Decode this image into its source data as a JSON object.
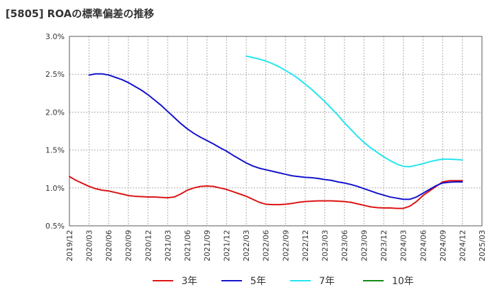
{
  "chart_data": {
    "type": "line",
    "title": "[5805]  ROAの標準偏差の推移",
    "xlabel": "",
    "ylabel": "",
    "ylim": [
      0.5,
      3.0
    ],
    "y_ticks": [
      "0.5%",
      "1.0%",
      "1.5%",
      "2.0%",
      "2.5%",
      "3.0%"
    ],
    "x_ticks": [
      "2019/12",
      "2020/03",
      "2020/06",
      "2020/09",
      "2020/12",
      "2021/03",
      "2021/06",
      "2021/09",
      "2021/12",
      "2022/03",
      "2022/06",
      "2022/09",
      "2022/12",
      "2023/03",
      "2023/06",
      "2023/09",
      "2023/12",
      "2024/03",
      "2024/06",
      "2024/09",
      "2024/12",
      "2025/03"
    ],
    "grid": true,
    "legend_position": "bottom",
    "series": [
      {
        "name": "3年",
        "color": "#dd1111",
        "points": [
          [
            "2019/12",
            1.15
          ],
          [
            "2020/01",
            1.1
          ],
          [
            "2020/02",
            1.06
          ],
          [
            "2020/03",
            1.02
          ],
          [
            "2020/04",
            0.99
          ],
          [
            "2020/05",
            0.97
          ],
          [
            "2020/06",
            0.96
          ],
          [
            "2020/07",
            0.94
          ],
          [
            "2020/08",
            0.92
          ],
          [
            "2020/09",
            0.9
          ],
          [
            "2020/10",
            0.89
          ],
          [
            "2020/11",
            0.885
          ],
          [
            "2020/12",
            0.88
          ],
          [
            "2021/01",
            0.88
          ],
          [
            "2021/02",
            0.875
          ],
          [
            "2021/03",
            0.87
          ],
          [
            "2021/04",
            0.88
          ],
          [
            "2021/05",
            0.92
          ],
          [
            "2021/06",
            0.97
          ],
          [
            "2021/07",
            1.0
          ],
          [
            "2021/08",
            1.02
          ],
          [
            "2021/09",
            1.025
          ],
          [
            "2021/10",
            1.02
          ],
          [
            "2021/11",
            1.0
          ],
          [
            "2021/12",
            0.98
          ],
          [
            "2022/01",
            0.95
          ],
          [
            "2022/02",
            0.92
          ],
          [
            "2022/03",
            0.89
          ],
          [
            "2022/04",
            0.85
          ],
          [
            "2022/05",
            0.81
          ],
          [
            "2022/06",
            0.785
          ],
          [
            "2022/07",
            0.78
          ],
          [
            "2022/08",
            0.78
          ],
          [
            "2022/09",
            0.785
          ],
          [
            "2022/10",
            0.795
          ],
          [
            "2022/11",
            0.81
          ],
          [
            "2022/12",
            0.82
          ],
          [
            "2023/01",
            0.825
          ],
          [
            "2023/02",
            0.83
          ],
          [
            "2023/03",
            0.83
          ],
          [
            "2023/04",
            0.83
          ],
          [
            "2023/05",
            0.825
          ],
          [
            "2023/06",
            0.82
          ],
          [
            "2023/07",
            0.81
          ],
          [
            "2023/08",
            0.79
          ],
          [
            "2023/09",
            0.77
          ],
          [
            "2023/10",
            0.75
          ],
          [
            "2023/11",
            0.74
          ],
          [
            "2023/12",
            0.735
          ],
          [
            "2024/01",
            0.735
          ],
          [
            "2024/02",
            0.73
          ],
          [
            "2024/03",
            0.73
          ],
          [
            "2024/04",
            0.76
          ],
          [
            "2024/05",
            0.82
          ],
          [
            "2024/06",
            0.9
          ],
          [
            "2024/07",
            0.96
          ],
          [
            "2024/08",
            1.02
          ],
          [
            "2024/09",
            1.08
          ],
          [
            "2024/10",
            1.095
          ],
          [
            "2024/11",
            1.095
          ],
          [
            "2024/12",
            1.095
          ]
        ]
      },
      {
        "name": "5年",
        "color": "#1111cc",
        "points": [
          [
            "2020/03",
            2.49
          ],
          [
            "2020/04",
            2.505
          ],
          [
            "2020/05",
            2.505
          ],
          [
            "2020/06",
            2.49
          ],
          [
            "2020/07",
            2.46
          ],
          [
            "2020/08",
            2.43
          ],
          [
            "2020/09",
            2.39
          ],
          [
            "2020/10",
            2.34
          ],
          [
            "2020/11",
            2.29
          ],
          [
            "2020/12",
            2.23
          ],
          [
            "2021/01",
            2.16
          ],
          [
            "2021/02",
            2.09
          ],
          [
            "2021/03",
            2.01
          ],
          [
            "2021/04",
            1.93
          ],
          [
            "2021/05",
            1.85
          ],
          [
            "2021/06",
            1.78
          ],
          [
            "2021/07",
            1.72
          ],
          [
            "2021/08",
            1.67
          ],
          [
            "2021/09",
            1.625
          ],
          [
            "2021/10",
            1.58
          ],
          [
            "2021/11",
            1.53
          ],
          [
            "2021/12",
            1.485
          ],
          [
            "2022/01",
            1.43
          ],
          [
            "2022/02",
            1.38
          ],
          [
            "2022/03",
            1.33
          ],
          [
            "2022/04",
            1.29
          ],
          [
            "2022/05",
            1.26
          ],
          [
            "2022/06",
            1.24
          ],
          [
            "2022/07",
            1.22
          ],
          [
            "2022/08",
            1.2
          ],
          [
            "2022/09",
            1.18
          ],
          [
            "2022/10",
            1.16
          ],
          [
            "2022/11",
            1.15
          ],
          [
            "2022/12",
            1.14
          ],
          [
            "2023/01",
            1.135
          ],
          [
            "2023/02",
            1.125
          ],
          [
            "2023/03",
            1.11
          ],
          [
            "2023/04",
            1.1
          ],
          [
            "2023/05",
            1.08
          ],
          [
            "2023/06",
            1.065
          ],
          [
            "2023/07",
            1.045
          ],
          [
            "2023/08",
            1.02
          ],
          [
            "2023/09",
            0.99
          ],
          [
            "2023/10",
            0.96
          ],
          [
            "2023/11",
            0.93
          ],
          [
            "2023/12",
            0.905
          ],
          [
            "2024/01",
            0.88
          ],
          [
            "2024/02",
            0.865
          ],
          [
            "2024/03",
            0.85
          ],
          [
            "2024/04",
            0.85
          ],
          [
            "2024/05",
            0.88
          ],
          [
            "2024/06",
            0.93
          ],
          [
            "2024/07",
            0.98
          ],
          [
            "2024/08",
            1.03
          ],
          [
            "2024/09",
            1.065
          ],
          [
            "2024/10",
            1.075
          ],
          [
            "2024/11",
            1.08
          ],
          [
            "2024/12",
            1.08
          ]
        ]
      },
      {
        "name": "7年",
        "color": "#22e5ee",
        "points": [
          [
            "2022/03",
            2.74
          ],
          [
            "2022/04",
            2.72
          ],
          [
            "2022/05",
            2.7
          ],
          [
            "2022/06",
            2.675
          ],
          [
            "2022/07",
            2.64
          ],
          [
            "2022/08",
            2.6
          ],
          [
            "2022/09",
            2.55
          ],
          [
            "2022/10",
            2.5
          ],
          [
            "2022/11",
            2.44
          ],
          [
            "2022/12",
            2.37
          ],
          [
            "2023/01",
            2.3
          ],
          [
            "2023/02",
            2.22
          ],
          [
            "2023/03",
            2.14
          ],
          [
            "2023/04",
            2.05
          ],
          [
            "2023/05",
            1.96
          ],
          [
            "2023/06",
            1.86
          ],
          [
            "2023/07",
            1.77
          ],
          [
            "2023/08",
            1.68
          ],
          [
            "2023/09",
            1.6
          ],
          [
            "2023/10",
            1.53
          ],
          [
            "2023/11",
            1.47
          ],
          [
            "2023/12",
            1.41
          ],
          [
            "2024/01",
            1.36
          ],
          [
            "2024/02",
            1.315
          ],
          [
            "2024/03",
            1.285
          ],
          [
            "2024/04",
            1.28
          ],
          [
            "2024/05",
            1.3
          ],
          [
            "2024/06",
            1.32
          ],
          [
            "2024/07",
            1.345
          ],
          [
            "2024/08",
            1.365
          ],
          [
            "2024/09",
            1.38
          ],
          [
            "2024/10",
            1.38
          ],
          [
            "2024/11",
            1.375
          ],
          [
            "2024/12",
            1.37
          ]
        ]
      },
      {
        "name": "10年",
        "color": "#118811",
        "points": []
      }
    ]
  }
}
